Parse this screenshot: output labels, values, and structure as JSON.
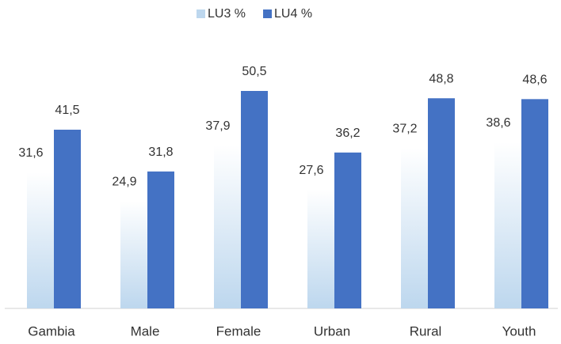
{
  "chart_data": {
    "type": "bar",
    "categories": [
      "Gambia",
      "Male",
      "Female",
      "Urban",
      "Rural",
      "Youth"
    ],
    "series": [
      {
        "name": "LU3 %",
        "color": "#bdd7ee",
        "values": [
          31.6,
          24.9,
          37.9,
          27.6,
          37.2,
          38.6
        ],
        "value_labels": [
          "31,6",
          "24,9",
          "37,9",
          "27,6",
          "37,2",
          "38,6"
        ]
      },
      {
        "name": "LU4 %",
        "color": "#4472c4",
        "values": [
          41.5,
          31.8,
          50.5,
          36.2,
          48.8,
          48.6
        ],
        "value_labels": [
          "41,5",
          "31,8",
          "50,5",
          "36,2",
          "48,8",
          "48,6"
        ]
      }
    ],
    "legend": "top"
  }
}
